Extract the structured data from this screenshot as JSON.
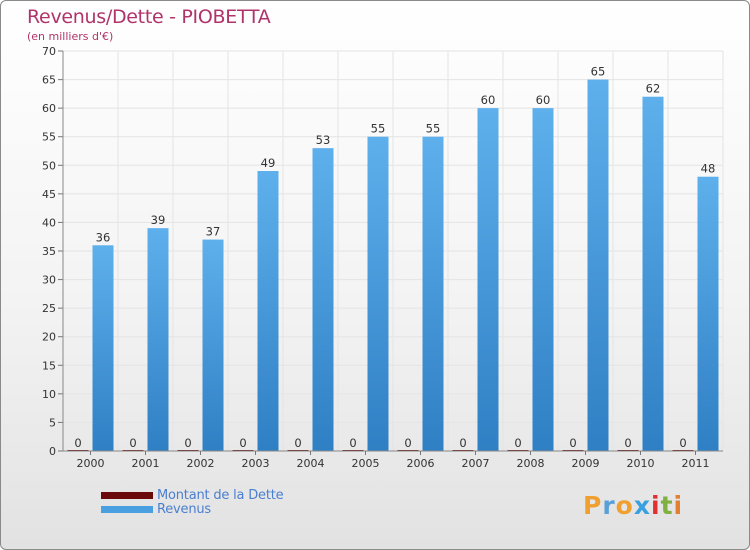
{
  "header": {
    "title": "Revenus/Dette - PIOBETTA",
    "subtitle": "(en milliers d'€)"
  },
  "legend": {
    "items": [
      {
        "label": "Montant de la Dette",
        "color": "#6b0a0a"
      },
      {
        "label": "Revenus",
        "color": "#4a9fe0"
      }
    ]
  },
  "logo": {
    "letters": [
      "P",
      "r",
      "o",
      "x",
      "i",
      "t",
      "i"
    ],
    "colors": [
      "#f0a030",
      "#5aa0d8",
      "#f0a030",
      "#3aa0e0",
      "#e03030",
      "#80b040",
      "#e08030"
    ]
  },
  "chart_data": {
    "type": "bar",
    "title": "Revenus/Dette - PIOBETTA",
    "subtitle": "(en milliers d'€)",
    "categories": [
      "2000",
      "2001",
      "2002",
      "2003",
      "2004",
      "2005",
      "2006",
      "2007",
      "2008",
      "2009",
      "2010",
      "2011"
    ],
    "series": [
      {
        "name": "Montant de la Dette",
        "color": "#6b0a0a",
        "values": [
          0,
          0,
          0,
          0,
          0,
          0,
          0,
          0,
          0,
          0,
          0,
          0
        ]
      },
      {
        "name": "Revenus",
        "color": "#4a9fe0",
        "values": [
          36,
          39,
          37,
          49,
          53,
          55,
          55,
          60,
          60,
          65,
          62,
          48
        ]
      }
    ],
    "ylim": [
      0,
      70
    ],
    "yticks": [
      0,
      5,
      10,
      15,
      20,
      25,
      30,
      35,
      40,
      45,
      50,
      55,
      60,
      65,
      70
    ],
    "grid": true,
    "legend_position": "bottom-left"
  }
}
